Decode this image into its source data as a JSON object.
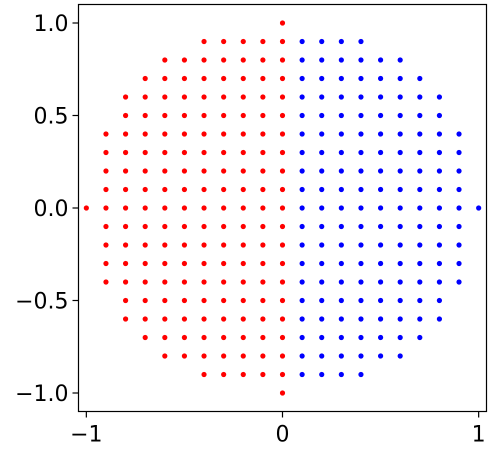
{
  "chart_data": {
    "type": "scatter",
    "xlim": [
      -1.04,
      1.04
    ],
    "ylim": [
      -1.1,
      1.1
    ],
    "x_ticks": [
      {
        "value": -1,
        "label": "−1"
      },
      {
        "value": 0,
        "label": "0"
      },
      {
        "value": 1,
        "label": "1"
      }
    ],
    "y_ticks": [
      {
        "value": 1.0,
        "label": "1.0"
      },
      {
        "value": 0.5,
        "label": "0.5"
      },
      {
        "value": 0.0,
        "label": "0.0"
      },
      {
        "value": -0.5,
        "label": "−0.5"
      },
      {
        "value": -1.0,
        "label": "−1.0"
      }
    ],
    "grid": false,
    "legend": "none",
    "series": [
      {
        "color": "#ff0000",
        "points": [
          [
            -1.0,
            0.0
          ],
          [
            -0.9,
            -0.4
          ],
          [
            -0.9,
            -0.3
          ],
          [
            -0.9,
            -0.2
          ],
          [
            -0.9,
            -0.1
          ],
          [
            -0.9,
            0.0
          ],
          [
            -0.9,
            0.1
          ],
          [
            -0.9,
            0.2
          ],
          [
            -0.9,
            0.3
          ],
          [
            -0.9,
            0.4
          ],
          [
            -0.8,
            -0.6
          ],
          [
            -0.8,
            -0.5
          ],
          [
            -0.8,
            -0.4
          ],
          [
            -0.8,
            -0.3
          ],
          [
            -0.8,
            -0.2
          ],
          [
            -0.8,
            -0.1
          ],
          [
            -0.8,
            0.0
          ],
          [
            -0.8,
            0.1
          ],
          [
            -0.8,
            0.2
          ],
          [
            -0.8,
            0.3
          ],
          [
            -0.8,
            0.4
          ],
          [
            -0.8,
            0.5
          ],
          [
            -0.8,
            0.6
          ],
          [
            -0.7,
            -0.7
          ],
          [
            -0.7,
            -0.6
          ],
          [
            -0.7,
            -0.5
          ],
          [
            -0.7,
            -0.4
          ],
          [
            -0.7,
            -0.3
          ],
          [
            -0.7,
            -0.2
          ],
          [
            -0.7,
            -0.1
          ],
          [
            -0.7,
            0.0
          ],
          [
            -0.7,
            0.1
          ],
          [
            -0.7,
            0.2
          ],
          [
            -0.7,
            0.3
          ],
          [
            -0.7,
            0.4
          ],
          [
            -0.7,
            0.5
          ],
          [
            -0.7,
            0.6
          ],
          [
            -0.7,
            0.7
          ],
          [
            -0.6,
            -0.8
          ],
          [
            -0.6,
            -0.7
          ],
          [
            -0.6,
            -0.6
          ],
          [
            -0.6,
            -0.5
          ],
          [
            -0.6,
            -0.4
          ],
          [
            -0.6,
            -0.3
          ],
          [
            -0.6,
            -0.2
          ],
          [
            -0.6,
            -0.1
          ],
          [
            -0.6,
            0.0
          ],
          [
            -0.6,
            0.1
          ],
          [
            -0.6,
            0.2
          ],
          [
            -0.6,
            0.3
          ],
          [
            -0.6,
            0.4
          ],
          [
            -0.6,
            0.5
          ],
          [
            -0.6,
            0.6
          ],
          [
            -0.6,
            0.7
          ],
          [
            -0.6,
            0.8
          ],
          [
            -0.5,
            -0.8
          ],
          [
            -0.5,
            -0.7
          ],
          [
            -0.5,
            -0.6
          ],
          [
            -0.5,
            -0.5
          ],
          [
            -0.5,
            -0.4
          ],
          [
            -0.5,
            -0.3
          ],
          [
            -0.5,
            -0.2
          ],
          [
            -0.5,
            -0.1
          ],
          [
            -0.5,
            0.0
          ],
          [
            -0.5,
            0.1
          ],
          [
            -0.5,
            0.2
          ],
          [
            -0.5,
            0.3
          ],
          [
            -0.5,
            0.4
          ],
          [
            -0.5,
            0.5
          ],
          [
            -0.5,
            0.6
          ],
          [
            -0.5,
            0.7
          ],
          [
            -0.5,
            0.8
          ],
          [
            -0.4,
            -0.9
          ],
          [
            -0.4,
            -0.8
          ],
          [
            -0.4,
            -0.7
          ],
          [
            -0.4,
            -0.6
          ],
          [
            -0.4,
            -0.5
          ],
          [
            -0.4,
            -0.4
          ],
          [
            -0.4,
            -0.3
          ],
          [
            -0.4,
            -0.2
          ],
          [
            -0.4,
            -0.1
          ],
          [
            -0.4,
            0.0
          ],
          [
            -0.4,
            0.1
          ],
          [
            -0.4,
            0.2
          ],
          [
            -0.4,
            0.3
          ],
          [
            -0.4,
            0.4
          ],
          [
            -0.4,
            0.5
          ],
          [
            -0.4,
            0.6
          ],
          [
            -0.4,
            0.7
          ],
          [
            -0.4,
            0.8
          ],
          [
            -0.4,
            0.9
          ],
          [
            -0.3,
            -0.9
          ],
          [
            -0.3,
            -0.8
          ],
          [
            -0.3,
            -0.7
          ],
          [
            -0.3,
            -0.6
          ],
          [
            -0.3,
            -0.5
          ],
          [
            -0.3,
            -0.4
          ],
          [
            -0.3,
            -0.3
          ],
          [
            -0.3,
            -0.2
          ],
          [
            -0.3,
            -0.1
          ],
          [
            -0.3,
            0.0
          ],
          [
            -0.3,
            0.1
          ],
          [
            -0.3,
            0.2
          ],
          [
            -0.3,
            0.3
          ],
          [
            -0.3,
            0.4
          ],
          [
            -0.3,
            0.5
          ],
          [
            -0.3,
            0.6
          ],
          [
            -0.3,
            0.7
          ],
          [
            -0.3,
            0.8
          ],
          [
            -0.3,
            0.9
          ],
          [
            -0.2,
            -0.9
          ],
          [
            -0.2,
            -0.8
          ],
          [
            -0.2,
            -0.7
          ],
          [
            -0.2,
            -0.6
          ],
          [
            -0.2,
            -0.5
          ],
          [
            -0.2,
            -0.4
          ],
          [
            -0.2,
            -0.3
          ],
          [
            -0.2,
            -0.2
          ],
          [
            -0.2,
            -0.1
          ],
          [
            -0.2,
            0.0
          ],
          [
            -0.2,
            0.1
          ],
          [
            -0.2,
            0.2
          ],
          [
            -0.2,
            0.3
          ],
          [
            -0.2,
            0.4
          ],
          [
            -0.2,
            0.5
          ],
          [
            -0.2,
            0.6
          ],
          [
            -0.2,
            0.7
          ],
          [
            -0.2,
            0.8
          ],
          [
            -0.2,
            0.9
          ],
          [
            -0.1,
            -0.9
          ],
          [
            -0.1,
            -0.8
          ],
          [
            -0.1,
            -0.7
          ],
          [
            -0.1,
            -0.6
          ],
          [
            -0.1,
            -0.5
          ],
          [
            -0.1,
            -0.4
          ],
          [
            -0.1,
            -0.3
          ],
          [
            -0.1,
            -0.2
          ],
          [
            -0.1,
            -0.1
          ],
          [
            -0.1,
            0.0
          ],
          [
            -0.1,
            0.1
          ],
          [
            -0.1,
            0.2
          ],
          [
            -0.1,
            0.3
          ],
          [
            -0.1,
            0.4
          ],
          [
            -0.1,
            0.5
          ],
          [
            -0.1,
            0.6
          ],
          [
            -0.1,
            0.7
          ],
          [
            -0.1,
            0.8
          ],
          [
            -0.1,
            0.9
          ],
          [
            0.0,
            -1.0
          ],
          [
            0.0,
            -0.9
          ],
          [
            0.0,
            -0.8
          ],
          [
            0.0,
            -0.7
          ],
          [
            0.0,
            -0.6
          ],
          [
            0.0,
            -0.5
          ],
          [
            0.0,
            -0.4
          ],
          [
            0.0,
            -0.3
          ],
          [
            0.0,
            -0.2
          ],
          [
            0.0,
            -0.1
          ],
          [
            0.0,
            0.0
          ],
          [
            0.0,
            0.1
          ],
          [
            0.0,
            0.2
          ],
          [
            0.0,
            0.3
          ],
          [
            0.0,
            0.4
          ],
          [
            0.0,
            0.5
          ],
          [
            0.0,
            0.6
          ],
          [
            0.0,
            0.7
          ],
          [
            0.0,
            0.8
          ],
          [
            0.0,
            0.9
          ],
          [
            0.0,
            1.0
          ]
        ]
      },
      {
        "color": "#0000ff",
        "points": [
          [
            0.1,
            -0.9
          ],
          [
            0.1,
            -0.8
          ],
          [
            0.1,
            -0.7
          ],
          [
            0.1,
            -0.6
          ],
          [
            0.1,
            -0.5
          ],
          [
            0.1,
            -0.4
          ],
          [
            0.1,
            -0.3
          ],
          [
            0.1,
            -0.2
          ],
          [
            0.1,
            -0.1
          ],
          [
            0.1,
            0.0
          ],
          [
            0.1,
            0.1
          ],
          [
            0.1,
            0.2
          ],
          [
            0.1,
            0.3
          ],
          [
            0.1,
            0.4
          ],
          [
            0.1,
            0.5
          ],
          [
            0.1,
            0.6
          ],
          [
            0.1,
            0.7
          ],
          [
            0.1,
            0.8
          ],
          [
            0.1,
            0.9
          ],
          [
            0.2,
            -0.9
          ],
          [
            0.2,
            -0.8
          ],
          [
            0.2,
            -0.7
          ],
          [
            0.2,
            -0.6
          ],
          [
            0.2,
            -0.5
          ],
          [
            0.2,
            -0.4
          ],
          [
            0.2,
            -0.3
          ],
          [
            0.2,
            -0.2
          ],
          [
            0.2,
            -0.1
          ],
          [
            0.2,
            0.0
          ],
          [
            0.2,
            0.1
          ],
          [
            0.2,
            0.2
          ],
          [
            0.2,
            0.3
          ],
          [
            0.2,
            0.4
          ],
          [
            0.2,
            0.5
          ],
          [
            0.2,
            0.6
          ],
          [
            0.2,
            0.7
          ],
          [
            0.2,
            0.8
          ],
          [
            0.2,
            0.9
          ],
          [
            0.3,
            -0.9
          ],
          [
            0.3,
            -0.8
          ],
          [
            0.3,
            -0.7
          ],
          [
            0.3,
            -0.6
          ],
          [
            0.3,
            -0.5
          ],
          [
            0.3,
            -0.4
          ],
          [
            0.3,
            -0.3
          ],
          [
            0.3,
            -0.2
          ],
          [
            0.3,
            -0.1
          ],
          [
            0.3,
            0.0
          ],
          [
            0.3,
            0.1
          ],
          [
            0.3,
            0.2
          ],
          [
            0.3,
            0.3
          ],
          [
            0.3,
            0.4
          ],
          [
            0.3,
            0.5
          ],
          [
            0.3,
            0.6
          ],
          [
            0.3,
            0.7
          ],
          [
            0.3,
            0.8
          ],
          [
            0.3,
            0.9
          ],
          [
            0.4,
            -0.9
          ],
          [
            0.4,
            -0.8
          ],
          [
            0.4,
            -0.7
          ],
          [
            0.4,
            -0.6
          ],
          [
            0.4,
            -0.5
          ],
          [
            0.4,
            -0.4
          ],
          [
            0.4,
            -0.3
          ],
          [
            0.4,
            -0.2
          ],
          [
            0.4,
            -0.1
          ],
          [
            0.4,
            0.0
          ],
          [
            0.4,
            0.1
          ],
          [
            0.4,
            0.2
          ],
          [
            0.4,
            0.3
          ],
          [
            0.4,
            0.4
          ],
          [
            0.4,
            0.5
          ],
          [
            0.4,
            0.6
          ],
          [
            0.4,
            0.7
          ],
          [
            0.4,
            0.8
          ],
          [
            0.4,
            0.9
          ],
          [
            0.5,
            -0.8
          ],
          [
            0.5,
            -0.7
          ],
          [
            0.5,
            -0.6
          ],
          [
            0.5,
            -0.5
          ],
          [
            0.5,
            -0.4
          ],
          [
            0.5,
            -0.3
          ],
          [
            0.5,
            -0.2
          ],
          [
            0.5,
            -0.1
          ],
          [
            0.5,
            0.0
          ],
          [
            0.5,
            0.1
          ],
          [
            0.5,
            0.2
          ],
          [
            0.5,
            0.3
          ],
          [
            0.5,
            0.4
          ],
          [
            0.5,
            0.5
          ],
          [
            0.5,
            0.6
          ],
          [
            0.5,
            0.7
          ],
          [
            0.5,
            0.8
          ],
          [
            0.6,
            -0.8
          ],
          [
            0.6,
            -0.7
          ],
          [
            0.6,
            -0.6
          ],
          [
            0.6,
            -0.5
          ],
          [
            0.6,
            -0.4
          ],
          [
            0.6,
            -0.3
          ],
          [
            0.6,
            -0.2
          ],
          [
            0.6,
            -0.1
          ],
          [
            0.6,
            0.0
          ],
          [
            0.6,
            0.1
          ],
          [
            0.6,
            0.2
          ],
          [
            0.6,
            0.3
          ],
          [
            0.6,
            0.4
          ],
          [
            0.6,
            0.5
          ],
          [
            0.6,
            0.6
          ],
          [
            0.6,
            0.7
          ],
          [
            0.6,
            0.8
          ],
          [
            0.7,
            -0.7
          ],
          [
            0.7,
            -0.6
          ],
          [
            0.7,
            -0.5
          ],
          [
            0.7,
            -0.4
          ],
          [
            0.7,
            -0.3
          ],
          [
            0.7,
            -0.2
          ],
          [
            0.7,
            -0.1
          ],
          [
            0.7,
            0.0
          ],
          [
            0.7,
            0.1
          ],
          [
            0.7,
            0.2
          ],
          [
            0.7,
            0.3
          ],
          [
            0.7,
            0.4
          ],
          [
            0.7,
            0.5
          ],
          [
            0.7,
            0.6
          ],
          [
            0.7,
            0.7
          ],
          [
            0.8,
            -0.6
          ],
          [
            0.8,
            -0.5
          ],
          [
            0.8,
            -0.4
          ],
          [
            0.8,
            -0.3
          ],
          [
            0.8,
            -0.2
          ],
          [
            0.8,
            -0.1
          ],
          [
            0.8,
            0.0
          ],
          [
            0.8,
            0.1
          ],
          [
            0.8,
            0.2
          ],
          [
            0.8,
            0.3
          ],
          [
            0.8,
            0.4
          ],
          [
            0.8,
            0.5
          ],
          [
            0.8,
            0.6
          ],
          [
            0.9,
            -0.4
          ],
          [
            0.9,
            -0.3
          ],
          [
            0.9,
            -0.2
          ],
          [
            0.9,
            -0.1
          ],
          [
            0.9,
            0.0
          ],
          [
            0.9,
            0.1
          ],
          [
            0.9,
            0.2
          ],
          [
            0.9,
            0.3
          ],
          [
            0.9,
            0.4
          ],
          [
            1.0,
            0.0
          ]
        ]
      }
    ]
  }
}
